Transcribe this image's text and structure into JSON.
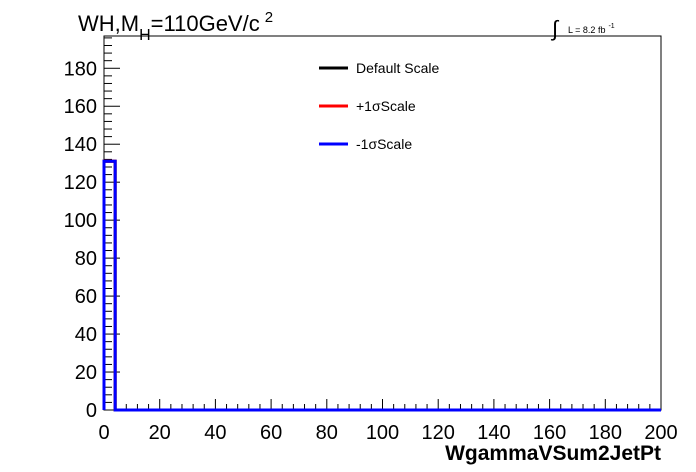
{
  "chart_data": {
    "type": "line",
    "title": {
      "main": "WH,M",
      "subscript": "H",
      "rest": "=110GeV/c",
      "superscript": "2"
    },
    "lumi": {
      "integral": "∫",
      "text": "L = 8.2 fb",
      "superscript": "-1"
    },
    "xlabel": "WgammaVSum2JetPt",
    "ylabel": "",
    "xlim": [
      0,
      200
    ],
    "ylim": [
      0,
      197
    ],
    "xticks": [
      0,
      20,
      40,
      60,
      80,
      100,
      120,
      140,
      160,
      180,
      200
    ],
    "yticks": [
      0,
      20,
      40,
      60,
      80,
      100,
      120,
      140,
      160,
      180
    ],
    "xtick_labels": [
      "0",
      "20",
      "40",
      "60",
      "80",
      "100",
      "120",
      "140",
      "160",
      "180",
      "200"
    ],
    "ytick_labels": [
      "0",
      "20",
      "40",
      "60",
      "80",
      "100",
      "120",
      "140",
      "160",
      "180"
    ],
    "grid": false,
    "legend_position": "top-center",
    "bin_edges": [
      0,
      4,
      200
    ],
    "series": [
      {
        "name": "Default Scale",
        "color": "#000000",
        "values": [
          131,
          0
        ]
      },
      {
        "name": "+1σScale",
        "color": "#ff0000",
        "values": [
          131,
          0
        ]
      },
      {
        "name": "-1σScale",
        "color": "#0000ff",
        "values": [
          131,
          0
        ]
      }
    ]
  }
}
